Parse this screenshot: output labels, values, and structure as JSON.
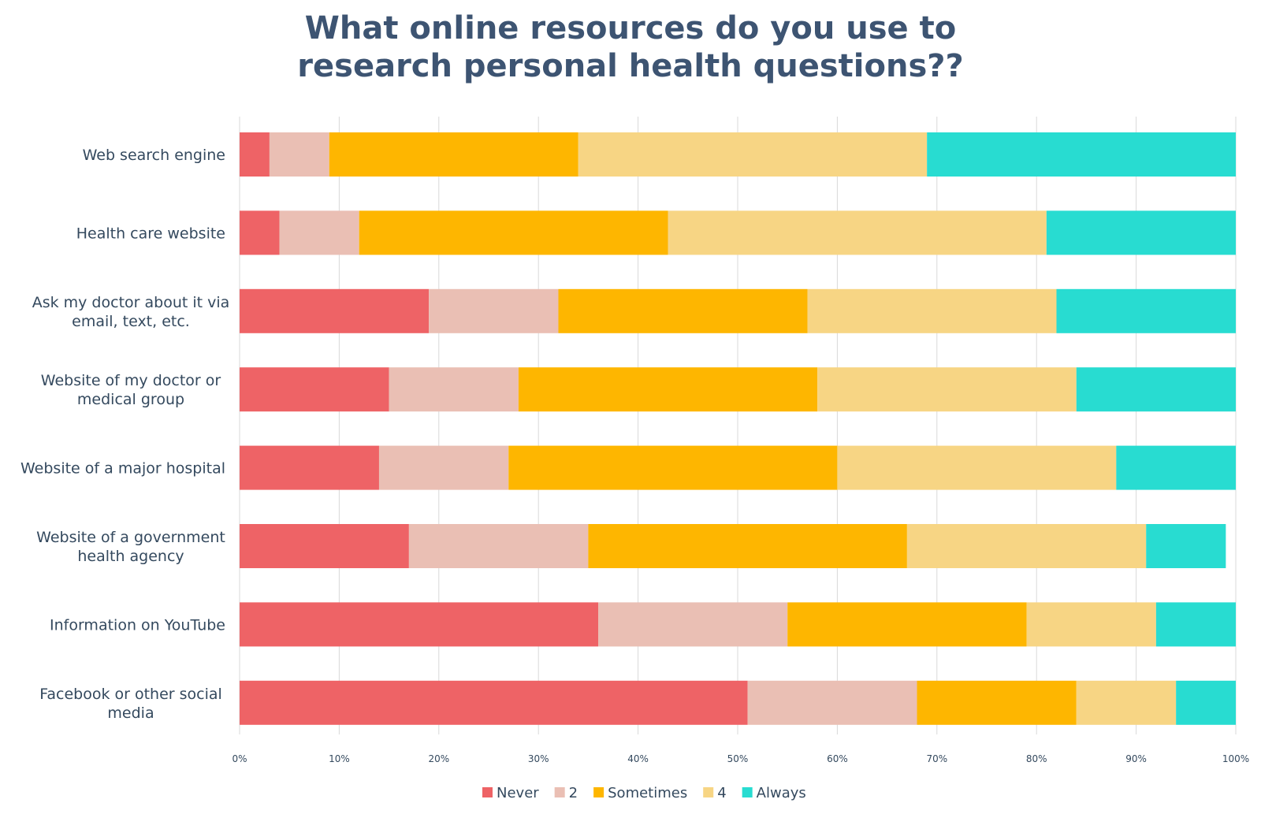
{
  "chart_data": {
    "type": "bar",
    "orientation": "horizontal",
    "stacked": true,
    "title": [
      "What online resources do you use to",
      "research personal health questions??"
    ],
    "categories": [
      [
        "Web search engine"
      ],
      [
        "Health care website"
      ],
      [
        "Ask my doctor about it via",
        "email, text, etc."
      ],
      [
        "Website of my doctor or",
        "medical group"
      ],
      [
        "Website of a major hospital"
      ],
      [
        "Website of a government",
        "health agency"
      ],
      [
        "Information on YouTube"
      ],
      [
        "Facebook or other social",
        "media"
      ]
    ],
    "series": [
      {
        "name": "Never",
        "color": "#ee6366",
        "values": [
          3,
          4,
          19,
          15,
          14,
          17,
          36,
          51
        ]
      },
      {
        "name": "2",
        "color": "#eabfb4",
        "values": [
          6,
          8,
          13,
          13,
          13,
          18,
          19,
          17
        ]
      },
      {
        "name": "Sometimes",
        "color": "#feb600",
        "values": [
          25,
          31,
          25,
          30,
          33,
          32,
          24,
          16
        ]
      },
      {
        "name": "4",
        "color": "#f7d584",
        "values": [
          35,
          38,
          25,
          26,
          28,
          24,
          13,
          10
        ]
      },
      {
        "name": "Always",
        "color": "#28dcd1",
        "values": [
          31,
          19,
          18,
          16,
          12,
          8,
          8,
          6
        ]
      }
    ],
    "xlim": [
      0,
      100
    ],
    "xticks": [
      "0%",
      "10%",
      "20%",
      "30%",
      "40%",
      "50%",
      "60%",
      "70%",
      "80%",
      "90%",
      "100%"
    ],
    "grid": true,
    "legend_position": "bottom"
  }
}
